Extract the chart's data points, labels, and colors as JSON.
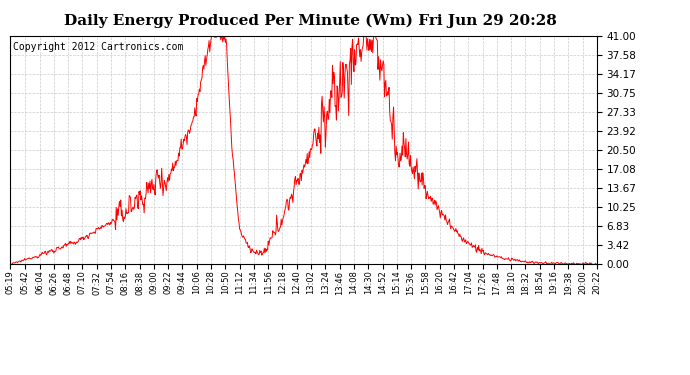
{
  "title": "Daily Energy Produced Per Minute (Wm) Fri Jun 29 20:28",
  "copyright": "Copyright 2012 Cartronics.com",
  "line_color": "#ff0000",
  "bg_color": "#ffffff",
  "grid_color": "#cccccc",
  "yticks": [
    0.0,
    3.42,
    6.83,
    10.25,
    13.67,
    17.08,
    20.5,
    23.92,
    27.33,
    30.75,
    34.17,
    37.58,
    41.0
  ],
  "ymax": 41.0,
  "ymin": 0.0,
  "xtick_labels": [
    "05:19",
    "05:42",
    "06:04",
    "06:26",
    "06:48",
    "07:10",
    "07:32",
    "07:54",
    "08:16",
    "08:38",
    "09:00",
    "09:22",
    "09:44",
    "10:06",
    "10:28",
    "10:50",
    "11:12",
    "11:34",
    "11:56",
    "12:18",
    "12:40",
    "13:02",
    "13:24",
    "13:46",
    "14:08",
    "14:30",
    "14:52",
    "15:14",
    "15:36",
    "15:58",
    "16:20",
    "16:42",
    "17:04",
    "17:26",
    "17:48",
    "18:10",
    "18:32",
    "18:54",
    "19:16",
    "19:38",
    "20:00",
    "20:22"
  ],
  "title_fontsize": 11,
  "copyright_fontsize": 7
}
